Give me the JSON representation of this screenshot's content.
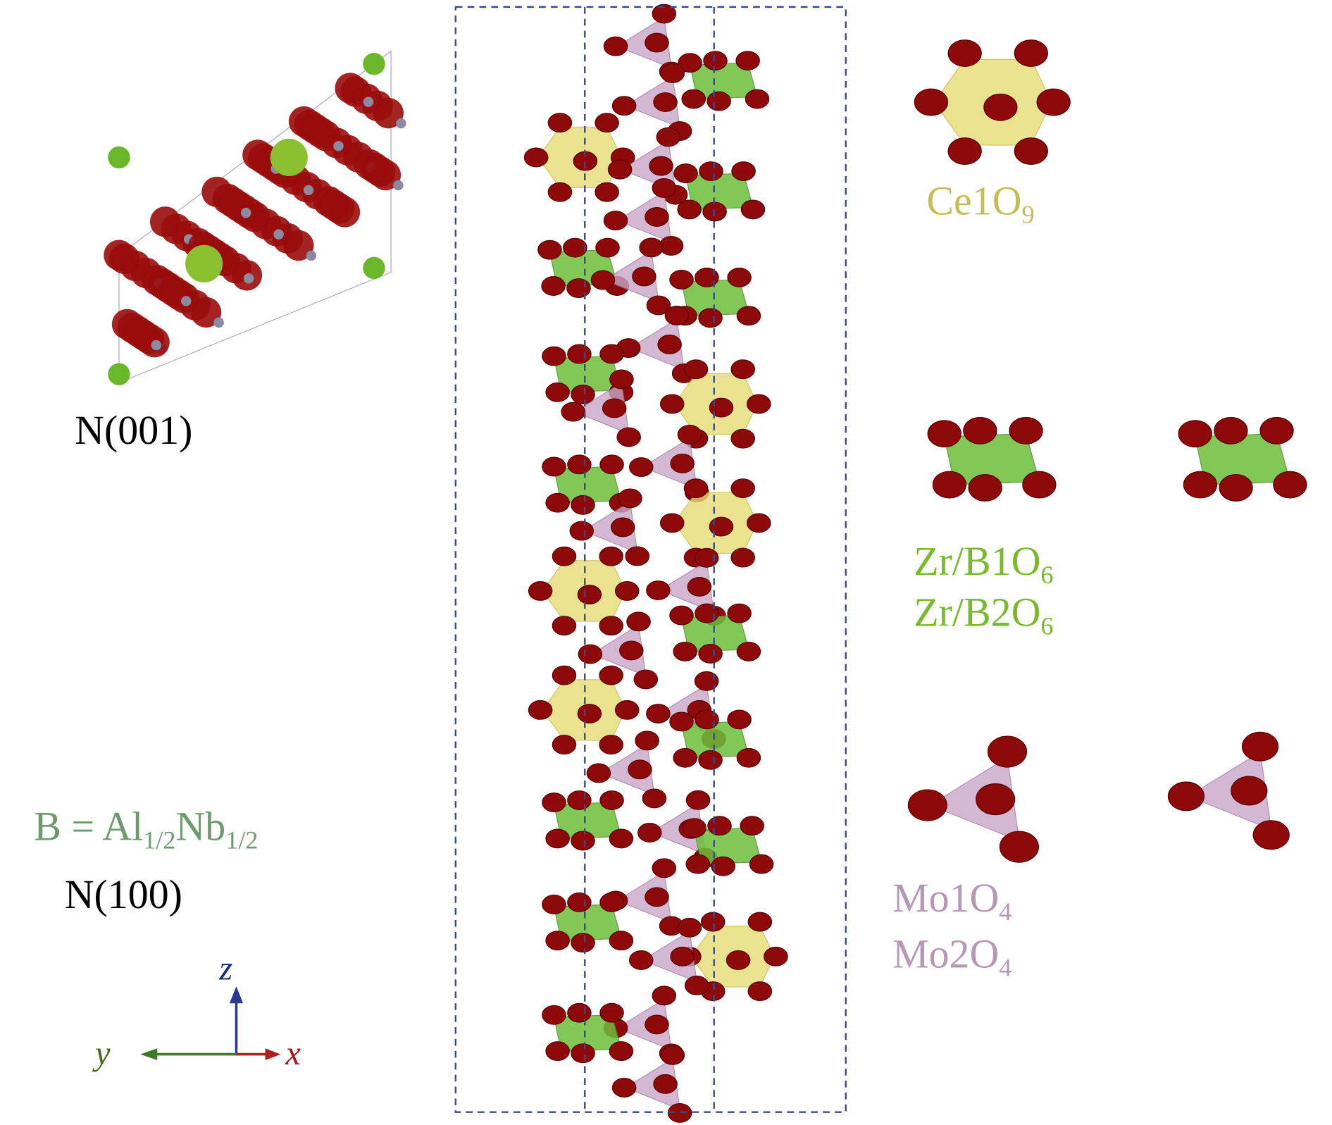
{
  "views": {
    "top": "N(001)",
    "side": "N(100)"
  },
  "b_site": [
    "B = Al",
    "1/2",
    "Nb",
    "1/2"
  ],
  "polyhedra": {
    "ce": [
      "Ce1O",
      "9"
    ],
    "zr1": [
      "Zr/B1O",
      "6"
    ],
    "zr2": [
      "Zr/B2O",
      "6"
    ],
    "mo1": [
      "Mo1O",
      "4"
    ],
    "mo2": [
      "Mo2O",
      "4"
    ]
  },
  "axes": {
    "z": "z",
    "y": "y",
    "x": "x"
  }
}
